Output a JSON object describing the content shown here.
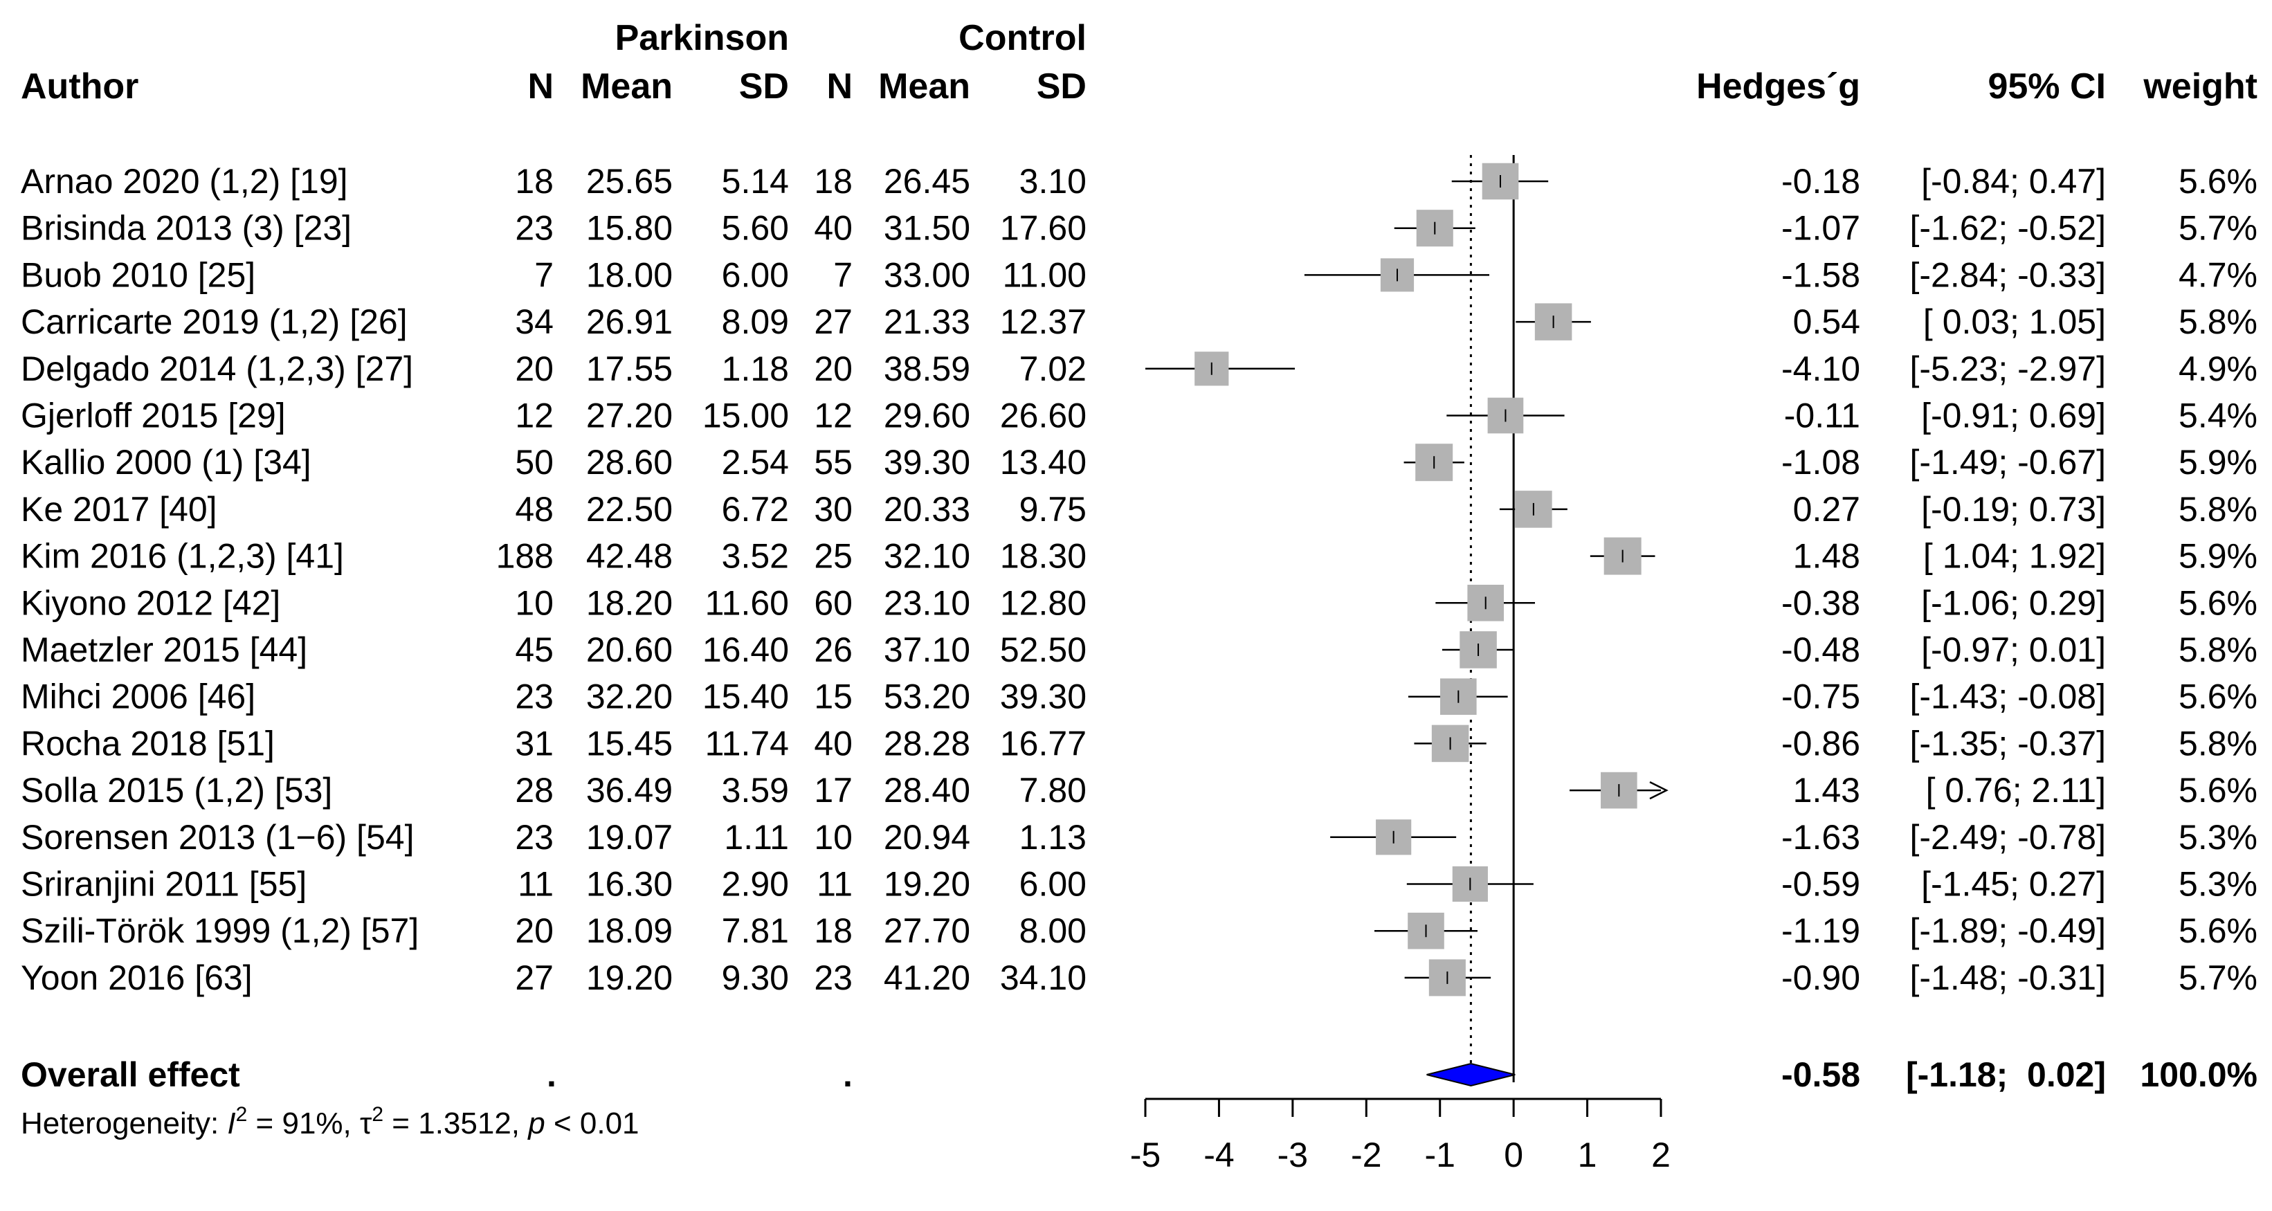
{
  "headers": {
    "group_parkinson": "Parkinson",
    "group_control": "Control",
    "author": "Author",
    "n": "N",
    "mean": "Mean",
    "sd": "SD",
    "hedges": "Hedges´g",
    "ci": "95% CI",
    "weight": "weight"
  },
  "studies": [
    {
      "author": "Arnao 2020 (1,2) [19]",
      "pn": "18",
      "pmean": "25.65",
      "psd": "5.14",
      "cn": "18",
      "cmean": "26.45",
      "csd": "3.10",
      "g": "-0.18",
      "ci": "[-0.84;  0.47]",
      "weight": "5.6%"
    },
    {
      "author": "Brisinda 2013 (3) [23]",
      "pn": "23",
      "pmean": "15.80",
      "psd": "5.60",
      "cn": "40",
      "cmean": "31.50",
      "csd": "17.60",
      "g": "-1.07",
      "ci": "[-1.62; -0.52]",
      "weight": "5.7%"
    },
    {
      "author": "Buob 2010 [25]",
      "pn": "7",
      "pmean": "18.00",
      "psd": "6.00",
      "cn": "7",
      "cmean": "33.00",
      "csd": "11.00",
      "g": "-1.58",
      "ci": "[-2.84; -0.33]",
      "weight": "4.7%"
    },
    {
      "author": "Carricarte 2019 (1,2) [26]",
      "pn": "34",
      "pmean": "26.91",
      "psd": "8.09",
      "cn": "27",
      "cmean": "21.33",
      "csd": "12.37",
      "g": "0.54",
      "ci": "[ 0.03;  1.05]",
      "weight": "5.8%"
    },
    {
      "author": "Delgado 2014 (1,2,3) [27]",
      "pn": "20",
      "pmean": "17.55",
      "psd": "1.18",
      "cn": "20",
      "cmean": "38.59",
      "csd": "7.02",
      "g": "-4.10",
      "ci": "[-5.23; -2.97]",
      "weight": "4.9%"
    },
    {
      "author": "Gjerloff 2015 [29]",
      "pn": "12",
      "pmean": "27.20",
      "psd": "15.00",
      "cn": "12",
      "cmean": "29.60",
      "csd": "26.60",
      "g": "-0.11",
      "ci": "[-0.91;  0.69]",
      "weight": "5.4%"
    },
    {
      "author": "Kallio 2000 (1) [34]",
      "pn": "50",
      "pmean": "28.60",
      "psd": "2.54",
      "cn": "55",
      "cmean": "39.30",
      "csd": "13.40",
      "g": "-1.08",
      "ci": "[-1.49; -0.67]",
      "weight": "5.9%"
    },
    {
      "author": "Ke 2017 [40]",
      "pn": "48",
      "pmean": "22.50",
      "psd": "6.72",
      "cn": "30",
      "cmean": "20.33",
      "csd": "9.75",
      "g": "0.27",
      "ci": "[-0.19;  0.73]",
      "weight": "5.8%"
    },
    {
      "author": "Kim 2016 (1,2,3) [41]",
      "pn": "188",
      "pmean": "42.48",
      "psd": "3.52",
      "cn": "25",
      "cmean": "32.10",
      "csd": "18.30",
      "g": "1.48",
      "ci": "[ 1.04;  1.92]",
      "weight": "5.9%"
    },
    {
      "author": "Kiyono 2012 [42]",
      "pn": "10",
      "pmean": "18.20",
      "psd": "11.60",
      "cn": "60",
      "cmean": "23.10",
      "csd": "12.80",
      "g": "-0.38",
      "ci": "[-1.06;  0.29]",
      "weight": "5.6%"
    },
    {
      "author": "Maetzler 2015 [44]",
      "pn": "45",
      "pmean": "20.60",
      "psd": "16.40",
      "cn": "26",
      "cmean": "37.10",
      "csd": "52.50",
      "g": "-0.48",
      "ci": "[-0.97;  0.01]",
      "weight": "5.8%"
    },
    {
      "author": "Mihci 2006 [46]",
      "pn": "23",
      "pmean": "32.20",
      "psd": "15.40",
      "cn": "15",
      "cmean": "53.20",
      "csd": "39.30",
      "g": "-0.75",
      "ci": "[-1.43; -0.08]",
      "weight": "5.6%"
    },
    {
      "author": "Rocha 2018 [51]",
      "pn": "31",
      "pmean": "15.45",
      "psd": "11.74",
      "cn": "40",
      "cmean": "28.28",
      "csd": "16.77",
      "g": "-0.86",
      "ci": "[-1.35; -0.37]",
      "weight": "5.8%"
    },
    {
      "author": "Solla 2015 (1,2) [53]",
      "pn": "28",
      "pmean": "36.49",
      "psd": "3.59",
      "cn": "17",
      "cmean": "28.40",
      "csd": "7.80",
      "g": "1.43",
      "ci": "[ 0.76;  2.11]",
      "weight": "5.6%"
    },
    {
      "author": "Sorensen 2013 (1−6) [54]",
      "pn": "23",
      "pmean": "19.07",
      "psd": "1.11",
      "cn": "10",
      "cmean": "20.94",
      "csd": "1.13",
      "g": "-1.63",
      "ci": "[-2.49; -0.78]",
      "weight": "5.3%"
    },
    {
      "author": "Sriranjini 2011 [55]",
      "pn": "11",
      "pmean": "16.30",
      "psd": "2.90",
      "cn": "11",
      "cmean": "19.20",
      "csd": "6.00",
      "g": "-0.59",
      "ci": "[-1.45;  0.27]",
      "weight": "5.3%"
    },
    {
      "author": "Szili-Török 1999 (1,2) [57]",
      "pn": "20",
      "pmean": "18.09",
      "psd": "7.81",
      "cn": "18",
      "cmean": "27.70",
      "csd": "8.00",
      "g": "-1.19",
      "ci": "[-1.89; -0.49]",
      "weight": "5.6%"
    },
    {
      "author": "Yoon 2016 [63]",
      "pn": "27",
      "pmean": "19.20",
      "psd": "9.30",
      "cn": "23",
      "cmean": "41.20",
      "csd": "34.10",
      "g": "-0.90",
      "ci": "[-1.48; -0.31]",
      "weight": "5.7%"
    }
  ],
  "overall": {
    "label": "Overall effect",
    "p_dot": ".",
    "c_dot": ".",
    "g": "-0.58",
    "ci": "[-1.18;  0.02]",
    "weight": "100.0%"
  },
  "heterogeneity": {
    "prefix": "Heterogeneity: ",
    "i2_symbol": "I",
    "i2_sup": "2",
    "i2_value": " = 91%, ",
    "tau2_symbol": "τ",
    "tau2_sup": "2",
    "tau2_value": " = 1.3512, ",
    "p_symbol": "p",
    "p_value": " < 0.01"
  },
  "colors": {
    "square": "#b3b3b3",
    "diamond": "#0000ff",
    "line": "#000000"
  },
  "chart_data": {
    "type": "forest",
    "xlim": [
      -5,
      2
    ],
    "ticks": [
      -5,
      -4,
      -3,
      -2,
      -1,
      0,
      1,
      2
    ],
    "tick_labels": [
      "-5",
      "-4",
      "-3",
      "-2",
      "-1",
      "0",
      "1",
      "2"
    ],
    "reference_line": 0,
    "pooled_estimate": -0.58,
    "pooled_ci": [
      -1.18,
      0.02
    ],
    "series": [
      {
        "name": "Arnao 2020 (1,2) [19]",
        "g": -0.18,
        "lower": -0.84,
        "upper": 0.47,
        "weight": 5.6
      },
      {
        "name": "Brisinda 2013 (3) [23]",
        "g": -1.07,
        "lower": -1.62,
        "upper": -0.52,
        "weight": 5.7
      },
      {
        "name": "Buob 2010 [25]",
        "g": -1.58,
        "lower": -2.84,
        "upper": -0.33,
        "weight": 4.7
      },
      {
        "name": "Carricarte 2019 (1,2) [26]",
        "g": 0.54,
        "lower": 0.03,
        "upper": 1.05,
        "weight": 5.8
      },
      {
        "name": "Delgado 2014 (1,2,3) [27]",
        "g": -4.1,
        "lower": -5.23,
        "upper": -2.97,
        "weight": 4.9
      },
      {
        "name": "Gjerloff 2015 [29]",
        "g": -0.11,
        "lower": -0.91,
        "upper": 0.69,
        "weight": 5.4
      },
      {
        "name": "Kallio 2000 (1) [34]",
        "g": -1.08,
        "lower": -1.49,
        "upper": -0.67,
        "weight": 5.9
      },
      {
        "name": "Ke 2017 [40]",
        "g": 0.27,
        "lower": -0.19,
        "upper": 0.73,
        "weight": 5.8
      },
      {
        "name": "Kim 2016 (1,2,3) [41]",
        "g": 1.48,
        "lower": 1.04,
        "upper": 1.92,
        "weight": 5.9
      },
      {
        "name": "Kiyono 2012 [42]",
        "g": -0.38,
        "lower": -1.06,
        "upper": 0.29,
        "weight": 5.6
      },
      {
        "name": "Maetzler 2015 [44]",
        "g": -0.48,
        "lower": -0.97,
        "upper": 0.01,
        "weight": 5.8
      },
      {
        "name": "Mihci 2006 [46]",
        "g": -0.75,
        "lower": -1.43,
        "upper": -0.08,
        "weight": 5.6
      },
      {
        "name": "Rocha 2018 [51]",
        "g": -0.86,
        "lower": -1.35,
        "upper": -0.37,
        "weight": 5.8
      },
      {
        "name": "Solla 2015 (1,2) [53]",
        "g": 1.43,
        "lower": 0.76,
        "upper": 2.11,
        "weight": 5.6
      },
      {
        "name": "Sorensen 2013 (1−6) [54]",
        "g": -1.63,
        "lower": -2.49,
        "upper": -0.78,
        "weight": 5.3
      },
      {
        "name": "Sriranjini 2011 [55]",
        "g": -0.59,
        "lower": -1.45,
        "upper": 0.27,
        "weight": 5.3
      },
      {
        "name": "Szili-Török 1999 (1,2) [57]",
        "g": -1.19,
        "lower": -1.89,
        "upper": -0.49,
        "weight": 5.6
      },
      {
        "name": "Yoon 2016 [63]",
        "g": -0.9,
        "lower": -1.48,
        "upper": -0.31,
        "weight": 5.7
      }
    ]
  }
}
